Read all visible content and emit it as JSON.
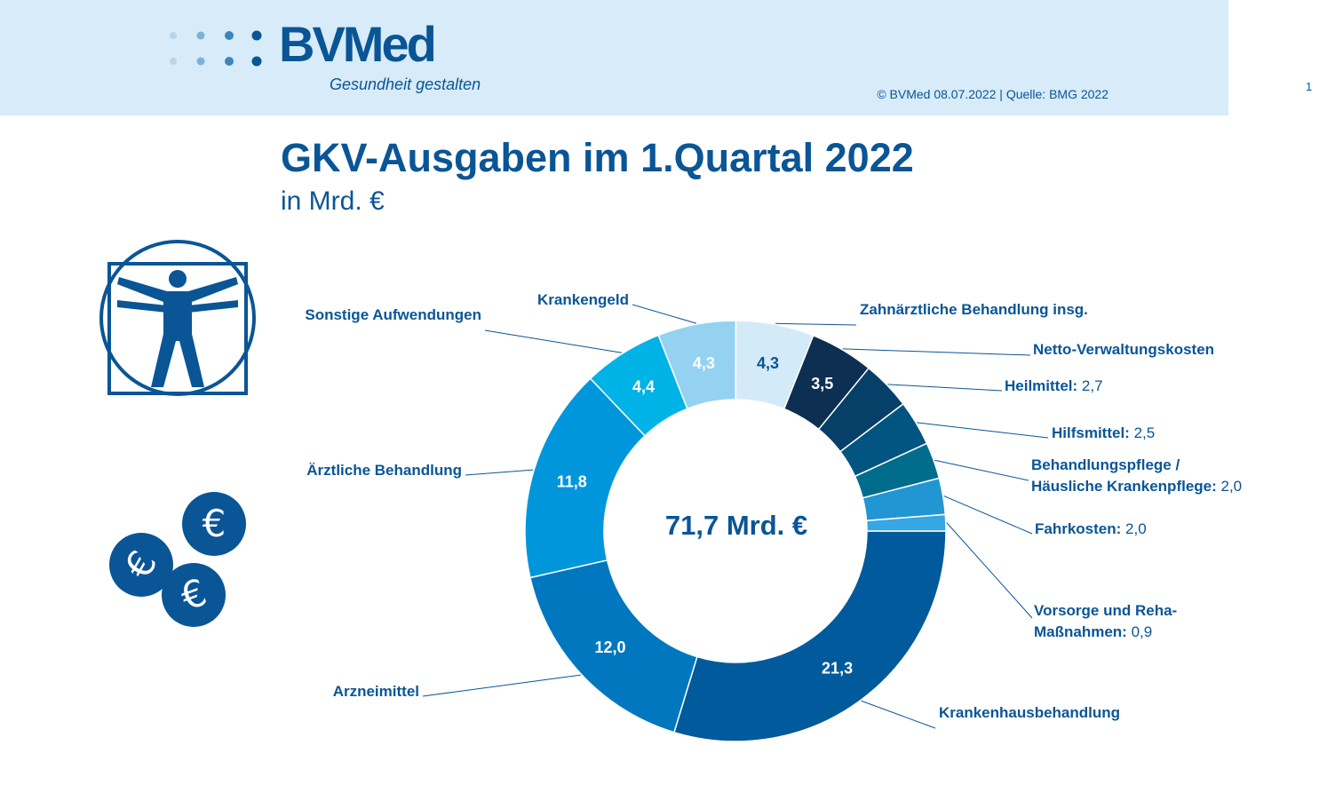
{
  "header": {
    "logo_text": "BVMed",
    "logo_tagline": "Gesundheit gestalten",
    "source": "© BVMed 08.07.2022 | Quelle: BMG 2022",
    "page_number": "1"
  },
  "icons": [
    "vitruvian-man-icon",
    "euro-coins-icon"
  ],
  "colors": {
    "header_bg": "#d7ebf8",
    "brand": "#0a5596"
  },
  "chart_data": {
    "type": "pie",
    "variant": "donut",
    "title": "GKV-Ausgaben im 1.Quartal 2022",
    "subtitle": "in Mrd. €",
    "center_label": "71,7 Mrd. €",
    "total": 71.7,
    "slices": [
      {
        "label": "Krankenhausbehandlung",
        "value": 21.3,
        "display": "21,3",
        "color": "#005a9c",
        "inside": true
      },
      {
        "label": "Arzneimittel",
        "value": 12.0,
        "display": "12,0",
        "color": "#0077bf",
        "inside": true
      },
      {
        "label": "Ärztliche Behandlung",
        "value": 11.8,
        "display": "11,8",
        "color": "#0096dc",
        "inside": true
      },
      {
        "label": "Sonstige Aufwendungen",
        "value": 4.4,
        "display": "4,4",
        "color": "#00b3e6",
        "inside": true
      },
      {
        "label": "Krankengeld",
        "value": 4.3,
        "display": "4,3",
        "color": "#95d2f1",
        "inside": true
      },
      {
        "label": "Zahnärztliche Behandlung insg.",
        "value": 4.3,
        "display": "4,3",
        "color": "#d3eaf8",
        "inside": true
      },
      {
        "label": "Netto-Verwaltungskosten",
        "value": 3.5,
        "display": "3,5",
        "color": "#0c2f52",
        "inside": true
      },
      {
        "label": "Heilmittel:",
        "value": 2.7,
        "display": "2,7",
        "color": "#063f68",
        "inside": false
      },
      {
        "label": "Hilfsmittel:",
        "value": 2.5,
        "display": "2,5",
        "color": "#035581",
        "inside": false
      },
      {
        "label": "Behandlungspflege / Häusliche Krankenpflege:",
        "value": 2.0,
        "display": "2,0",
        "color": "#006d8c",
        "inside": false
      },
      {
        "label": "Fahrkosten:",
        "value": 2.0,
        "display": "2,0",
        "color": "#2295d3",
        "inside": false
      },
      {
        "label": "Vorsorge und Reha-Maßnahmen:",
        "value": 0.9,
        "display": "0,9",
        "color": "#36a6e4",
        "inside": false
      }
    ]
  }
}
